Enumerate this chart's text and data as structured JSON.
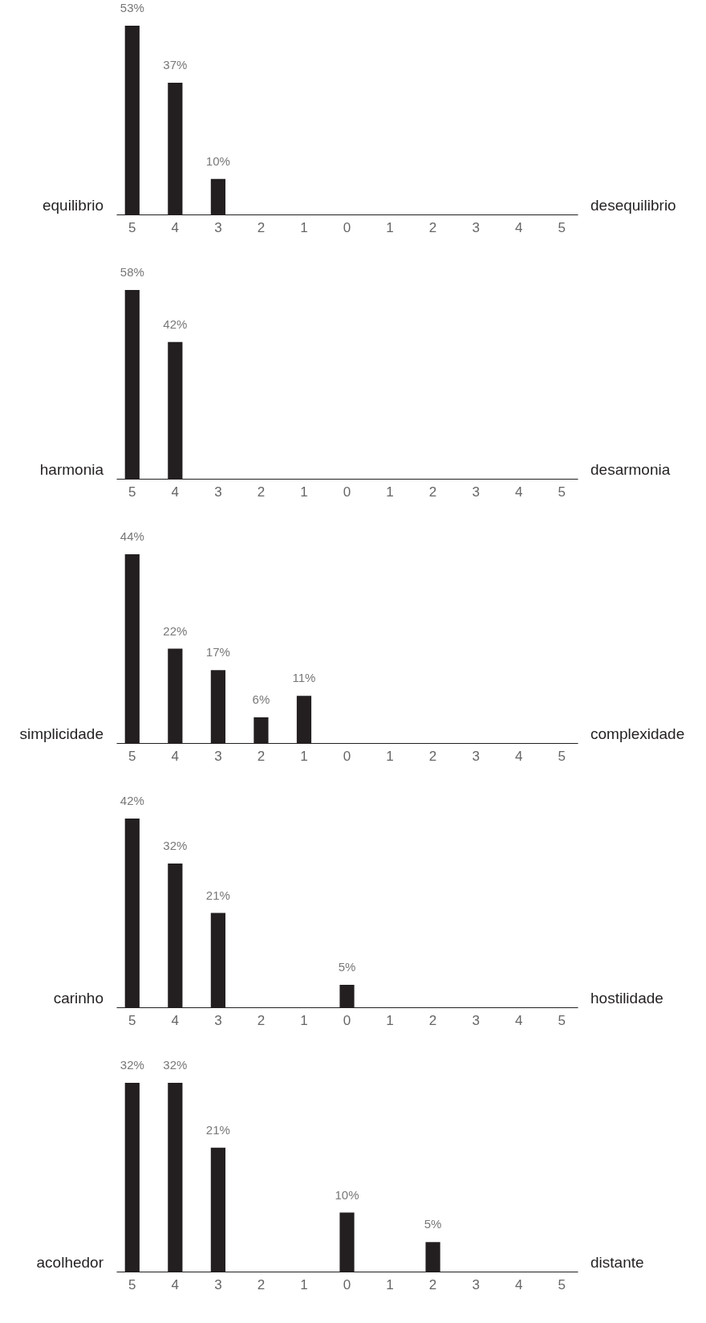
{
  "chart_data": [
    {
      "type": "bar",
      "categories": [
        "5",
        "4",
        "3",
        "2",
        "1",
        "0",
        "1",
        "2",
        "3",
        "4",
        "5"
      ],
      "values": [
        53,
        37,
        10,
        null,
        null,
        null,
        null,
        null,
        null,
        null,
        null
      ],
      "value_labels": [
        "53%",
        "37%",
        "10%",
        null,
        null,
        null,
        null,
        null,
        null,
        null,
        null
      ],
      "color": "#231f20",
      "annotations": [
        "equilibrio",
        "desequilibrio"
      ]
    },
    {
      "type": "bar",
      "categories": [
        "5",
        "4",
        "3",
        "2",
        "1",
        "0",
        "1",
        "2",
        "3",
        "4",
        "5"
      ],
      "values": [
        58,
        42,
        null,
        null,
        null,
        null,
        null,
        null,
        null,
        null,
        null
      ],
      "value_labels": [
        "58%",
        "42%",
        null,
        null,
        null,
        null,
        null,
        null,
        null,
        null,
        null
      ],
      "color": "#231f20",
      "annotations": [
        "harmonia",
        "desarmonia"
      ]
    },
    {
      "type": "bar",
      "categories": [
        "5",
        "4",
        "3",
        "2",
        "1",
        "0",
        "1",
        "2",
        "3",
        "4",
        "5"
      ],
      "values": [
        44,
        22,
        17,
        6,
        11,
        null,
        null,
        null,
        null,
        null,
        null
      ],
      "value_labels": [
        "44%",
        "22%",
        "17%",
        "6%",
        "11%",
        null,
        null,
        null,
        null,
        null,
        null
      ],
      "color": "#231f20",
      "annotations": [
        "simplicidade",
        "complexidade"
      ]
    },
    {
      "type": "bar",
      "categories": [
        "5",
        "4",
        "3",
        "2",
        "1",
        "0",
        "1",
        "2",
        "3",
        "4",
        "5"
      ],
      "values": [
        42,
        32,
        21,
        null,
        null,
        5,
        null,
        null,
        null,
        null,
        null
      ],
      "value_labels": [
        "42%",
        "32%",
        "21%",
        null,
        null,
        "5%",
        null,
        null,
        null,
        null,
        null
      ],
      "color": "#231f20",
      "annotations": [
        "carinho",
        "hostilidade"
      ]
    },
    {
      "type": "bar",
      "categories": [
        "5",
        "4",
        "3",
        "2",
        "1",
        "0",
        "1",
        "2",
        "3",
        "4",
        "5"
      ],
      "values": [
        32,
        32,
        21,
        null,
        null,
        10,
        null,
        5,
        null,
        null,
        null
      ],
      "value_labels": [
        "32%",
        "32%",
        "21%",
        null,
        null,
        "10%",
        null,
        "5%",
        null,
        null,
        null
      ],
      "color": "#231f20",
      "annotations": [
        "acolhedor",
        "distante"
      ]
    }
  ]
}
